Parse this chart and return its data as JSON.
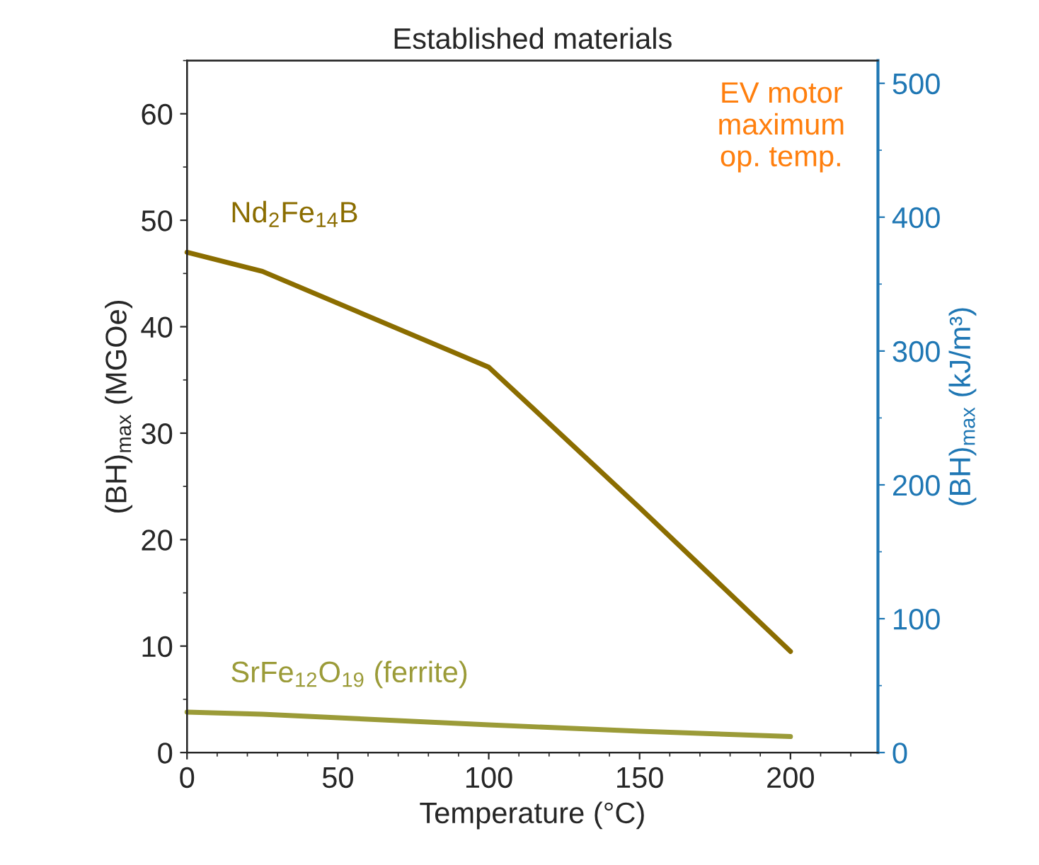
{
  "chart_data": {
    "type": "line",
    "title": "Established materials",
    "xlabel": "Temperature (°C)",
    "ylabel": "(BH)$_{max}$ (MGOe)",
    "y2label": "(BH)$_{max}$ (kJ/m³)",
    "xlim": [
      0,
      229
    ],
    "xticks": [
      0,
      50,
      100,
      150,
      200
    ],
    "ylim": [
      0,
      65
    ],
    "yticks": [
      0,
      10,
      20,
      30,
      40,
      50,
      60
    ],
    "y2lim": [
      0,
      517
    ],
    "y2ticks": [
      0,
      100,
      200,
      300,
      400,
      500
    ],
    "grid": false,
    "legend": false,
    "marker": "none",
    "line_style": "solid",
    "series": [
      {
        "name": "Nd$_{2}$Fe$_{14}$B",
        "color": "#8b6d00",
        "x": [
          0,
          25,
          100,
          150,
          200
        ],
        "values": [
          47.0,
          45.2,
          36.2,
          23.0,
          9.5
        ]
      },
      {
        "name": "SrFe$_{12}$O$_{19}$ (ferrite)",
        "color": "#9b9b38",
        "x": [
          0,
          25,
          100,
          150,
          200
        ],
        "values": [
          3.8,
          3.6,
          2.6,
          2.0,
          1.5
        ]
      }
    ],
    "annotations": [
      "EV motor\nmaximum\nop. temp."
    ]
  }
}
